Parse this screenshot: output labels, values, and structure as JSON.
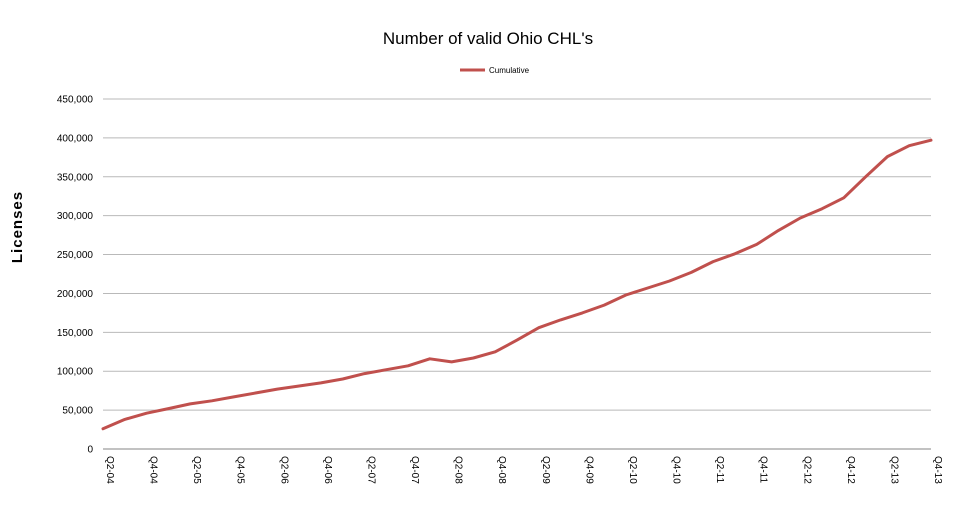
{
  "chart_data": {
    "type": "line",
    "title": "Number of valid Ohio CHL's",
    "ylabel": "Licenses",
    "xlabel": "",
    "ylim": [
      0,
      450000
    ],
    "ytick_labels": [
      "0",
      "50,000",
      "100,000",
      "150,000",
      "200,000",
      "250,000",
      "300,000",
      "350,000",
      "400,000",
      "450,000"
    ],
    "ytick_values": [
      0,
      50000,
      100000,
      150000,
      200000,
      250000,
      300000,
      350000,
      400000,
      450000
    ],
    "grid": true,
    "legend_position": "top-center",
    "x": [
      "Q2-04",
      "Q3-04",
      "Q4-04",
      "Q1-05",
      "Q2-05",
      "Q3-05",
      "Q4-05",
      "Q1-06",
      "Q2-06",
      "Q3-06",
      "Q4-06",
      "Q1-07",
      "Q2-07",
      "Q3-07",
      "Q4-07",
      "Q1-08",
      "Q2-08",
      "Q3-08",
      "Q4-08",
      "Q1-09",
      "Q2-09",
      "Q3-09",
      "Q4-09",
      "Q1-10",
      "Q2-10",
      "Q3-10",
      "Q4-10",
      "Q1-11",
      "Q2-11",
      "Q3-11",
      "Q4-11",
      "Q1-12",
      "Q2-12",
      "Q3-12",
      "Q4-12",
      "Q1-13",
      "Q2-13",
      "Q3-13",
      "Q4-13"
    ],
    "x_tick_labels": [
      "Q2-04",
      "Q4-04",
      "Q2-05",
      "Q4-05",
      "Q2-06",
      "Q4-06",
      "Q2-07",
      "Q4-07",
      "Q2-08",
      "Q4-08",
      "Q2-09",
      "Q4-09",
      "Q2-10",
      "Q4-10",
      "Q2-11",
      "Q4-11",
      "Q2-12",
      "Q4-12",
      "Q2-13",
      "Q4-13"
    ],
    "series": [
      {
        "name": "Cumulative",
        "color": "#c0504d",
        "values": [
          26000,
          38000,
          46000,
          52000,
          58000,
          62000,
          67000,
          72000,
          77000,
          81000,
          85000,
          90000,
          97000,
          102000,
          107000,
          116000,
          112000,
          117000,
          125000,
          140000,
          156000,
          166000,
          175000,
          185000,
          198000,
          207000,
          216000,
          227000,
          241000,
          251000,
          263000,
          281000,
          297000,
          309000,
          323000,
          350000,
          376000,
          390000,
          397000
        ]
      }
    ]
  }
}
